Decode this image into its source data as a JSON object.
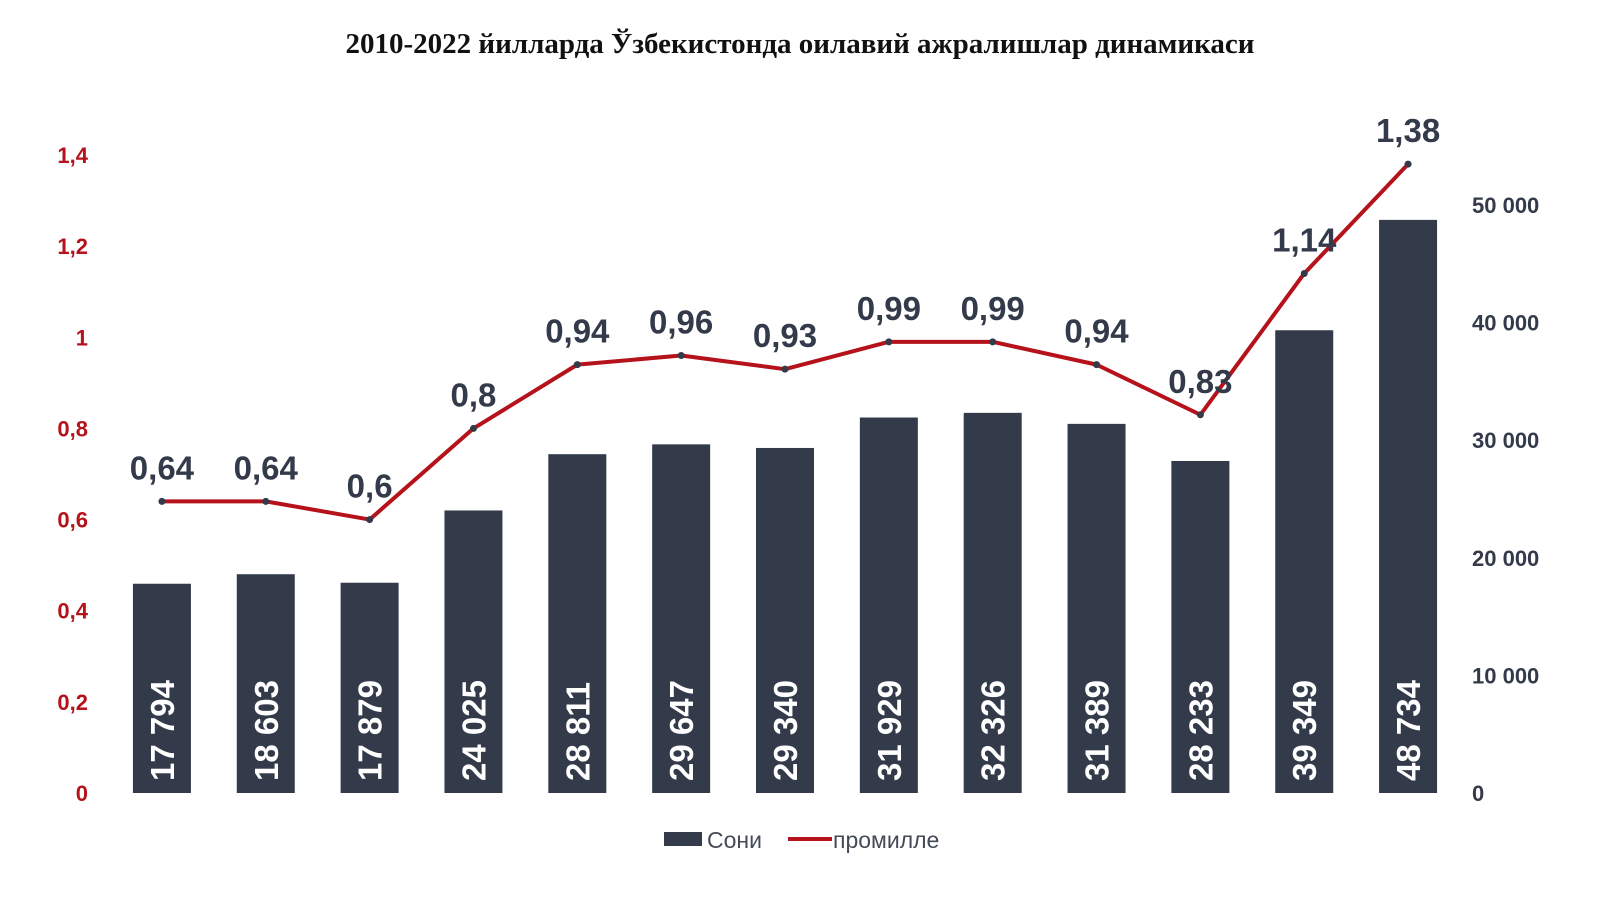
{
  "chart_data": {
    "type": "bar+line",
    "title": "2010-2022 йилларда Ўзбекистонда оилавий ажралишлар динамикаси",
    "categories": [
      "",
      "",
      "",
      "",
      "",
      "",
      "",
      "",
      "",
      "",
      "",
      "",
      ""
    ],
    "series": [
      {
        "name": "Сони",
        "type": "bar",
        "axis": "right",
        "color": "#333a4a",
        "values": [
          17794,
          18603,
          17879,
          24025,
          28811,
          29647,
          29340,
          31929,
          32326,
          31389,
          28233,
          39349,
          48734
        ],
        "labels": [
          "17 794",
          "18 603",
          "17 879",
          "24 025",
          "28 811",
          "29 647",
          "29 340",
          "31 929",
          "32 326",
          "31 389",
          "28 233",
          "39 349",
          "48 734"
        ]
      },
      {
        "name": "промилле",
        "type": "line",
        "axis": "left",
        "color": "#b5121b",
        "values": [
          0.64,
          0.64,
          0.6,
          0.8,
          0.94,
          0.96,
          0.93,
          0.99,
          0.99,
          0.94,
          0.83,
          1.14,
          1.38
        ],
        "labels": [
          "0,64",
          "0,64",
          "0,6",
          "0,8",
          "0,94",
          "0,96",
          "0,93",
          "0,99",
          "0,99",
          "0,94",
          "0,83",
          "1,14",
          "1,38"
        ]
      }
    ],
    "y_left": {
      "range": [
        0,
        1.4
      ],
      "ticks": [
        0,
        0.2,
        0.4,
        0.6,
        0.8,
        1,
        1.2,
        1.4
      ],
      "tick_labels": [
        "0",
        "0,2",
        "0,4",
        "0,6",
        "0,8",
        "1",
        "1,2",
        "1,4"
      ],
      "color": "#b5121b"
    },
    "y_right": {
      "range": [
        0,
        50000
      ],
      "ticks": [
        0,
        10000,
        20000,
        30000,
        40000,
        50000
      ],
      "tick_labels": [
        "0",
        "10 000",
        "20 000",
        "30 000",
        "40 000",
        "50 000"
      ],
      "color": "#333a4a"
    },
    "grid": false,
    "legend": "bottom"
  }
}
